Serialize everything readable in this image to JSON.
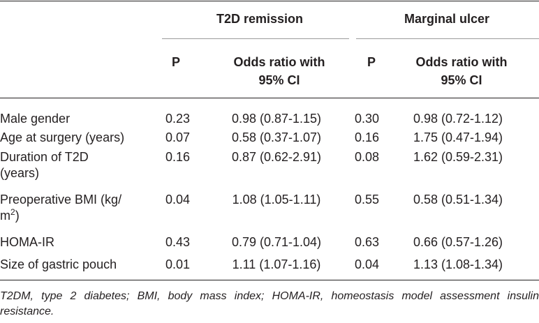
{
  "header": {
    "group1": "T2D remission",
    "group2": "Marginal ulcer",
    "p_label": "P",
    "or_label_line1": "Odds ratio with",
    "or_label_line2": "95% CI"
  },
  "rows": [
    {
      "label": "Male gender",
      "label2": "",
      "p1": "0.23",
      "or1": "0.98 (0.87-1.15)",
      "p2": "0.30",
      "or2": "0.98 (0.72-1.12)"
    },
    {
      "label": "Age at surgery (years)",
      "label2": "",
      "p1": "0.07",
      "or1": "0.58 (0.37-1.07)",
      "p2": "0.16",
      "or2": "1.75 (0.47-1.94)"
    },
    {
      "label": "Duration of T2D",
      "label2": "(years)",
      "p1": "0.16",
      "or1": "0.87 (0.62-2.91)",
      "p2": "0.08",
      "or2": "1.62 (0.59-2.31)"
    },
    {
      "label": "Preoperative BMI (kg/",
      "label2": "m",
      "label2_sup": "2",
      "label2_tail": ")",
      "p1": "0.04",
      "or1": "1.08 (1.05-1.11)",
      "p2": "0.55",
      "or2": "0.58 (0.51-1.34)"
    },
    {
      "label": "HOMA-IR",
      "label2": "",
      "p1": "0.43",
      "or1": "0.79 (0.71-1.04)",
      "p2": "0.63",
      "or2": "0.66 (0.57-1.26)"
    },
    {
      "label": "Size of gastric pouch",
      "label2": "",
      "p1": "0.01",
      "or1": "1.11 (1.07-1.16)",
      "p2": "0.04",
      "or2": "1.13 (1.08-1.34)"
    }
  ],
  "footnote": "T2DM, type 2 diabetes; BMI, body mass index; HOMA-IR, homeostasis model assessment insulin resistance."
}
